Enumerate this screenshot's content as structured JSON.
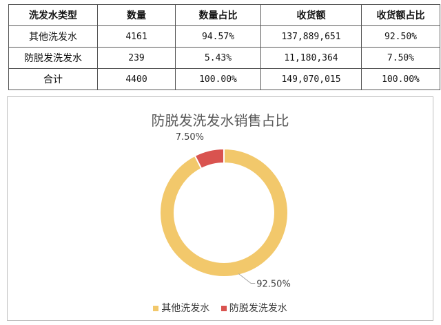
{
  "table": {
    "headers": [
      "洗发水类型",
      "数量",
      "数量占比",
      "收货额",
      "收货额占比"
    ],
    "rows": [
      [
        "其他洗发水",
        "4161",
        "94.57%",
        "137,889,651",
        "92.50%"
      ],
      [
        "防脱发洗发水",
        "239",
        "5.43%",
        "11,180,364",
        "7.50%"
      ],
      [
        "合计",
        "4400",
        "100.00%",
        "149,070,015",
        "100.00%"
      ]
    ]
  },
  "chart_data": {
    "type": "pie",
    "title": "防脱发洗发水销售占比",
    "donut": true,
    "categories": [
      "其他洗发水",
      "防脱发洗发水"
    ],
    "values": [
      92.5,
      7.5
    ],
    "data_labels": [
      "92.50%",
      "7.50%"
    ],
    "colors": [
      "#F2C86B",
      "#D9534F"
    ],
    "legend": "bottom"
  }
}
